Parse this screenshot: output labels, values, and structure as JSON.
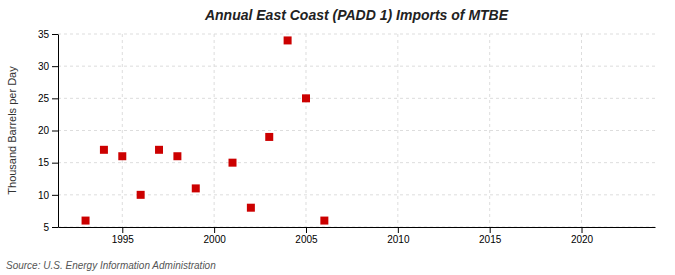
{
  "chart_data": {
    "type": "scatter",
    "title": "Annual East Coast (PADD 1) Imports of MTBE",
    "ylabel": "Thousand Barrels per Day",
    "annotations": [
      "Source: U.S. Energy Information Administration"
    ],
    "x": [
      1993,
      1994,
      1995,
      1996,
      1997,
      1998,
      1999,
      2001,
      2002,
      2003,
      2004,
      2005,
      2006
    ],
    "values": [
      6,
      17,
      16,
      10,
      17,
      16,
      11,
      15,
      8,
      19,
      34,
      25,
      6
    ],
    "color": "#cc0000",
    "marker": "square",
    "xlim": [
      1991.5,
      2024
    ],
    "ylim": [
      5,
      35
    ],
    "xticks": [
      1995,
      2000,
      2005,
      2010,
      2015,
      2020
    ],
    "yticks": [
      5,
      10,
      15,
      20,
      25,
      30,
      35
    ],
    "grid": true
  }
}
